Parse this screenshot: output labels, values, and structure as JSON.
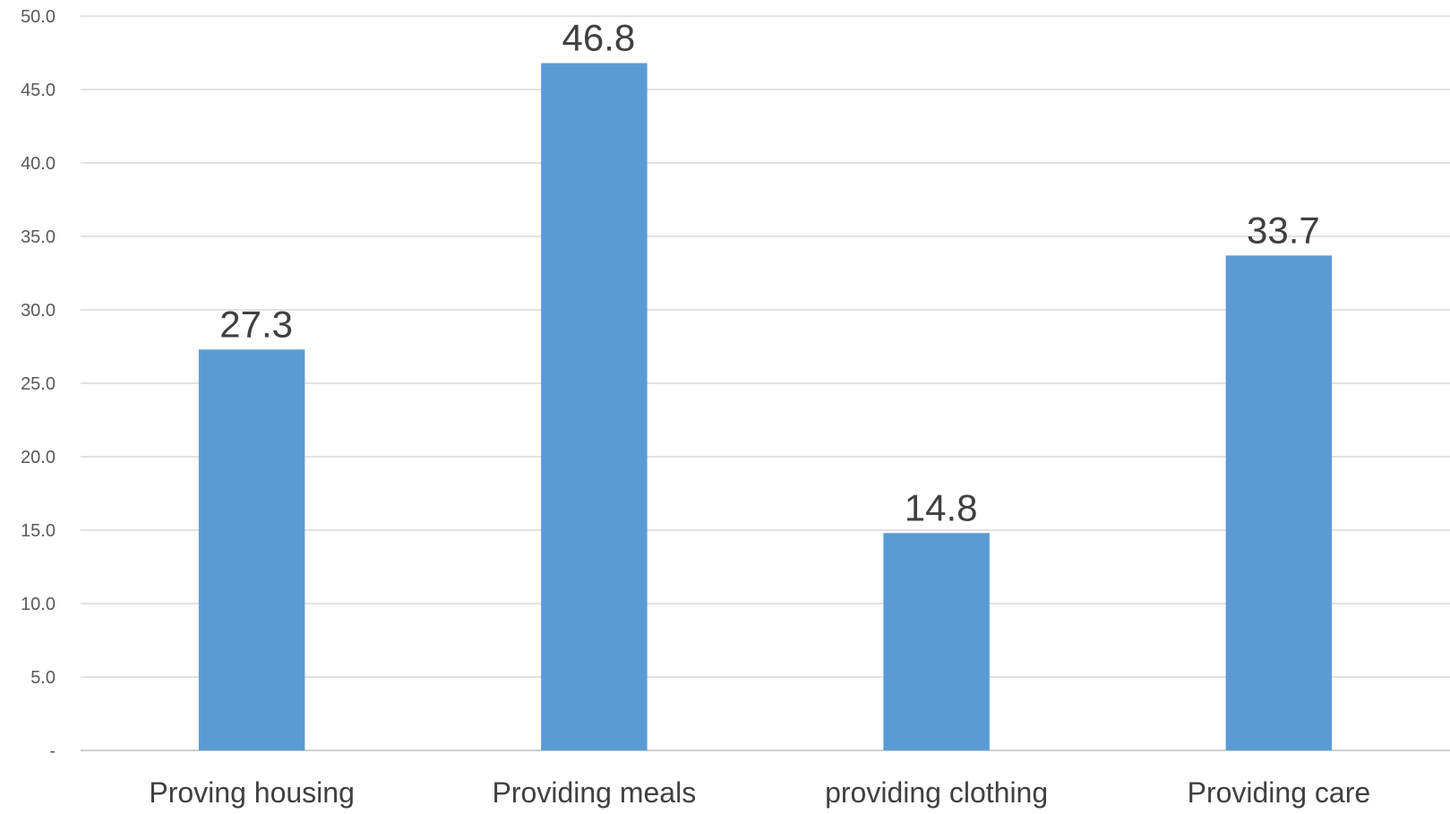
{
  "chart_data": {
    "type": "bar",
    "categories": [
      "Proving housing",
      "Providing meals",
      "providing clothing",
      "Providing care"
    ],
    "values": [
      27.3,
      46.8,
      14.8,
      33.7
    ],
    "data_labels": [
      "27.3",
      "46.8",
      "14.8",
      "33.7"
    ],
    "ylim": [
      0,
      50
    ],
    "yticks": [
      0,
      5,
      10,
      15,
      20,
      25,
      30,
      35,
      40,
      45,
      50
    ],
    "ytick_labels": [
      "-",
      "5.0",
      "10.0",
      "15.0",
      "20.0",
      "25.0",
      "30.0",
      "35.0",
      "40.0",
      "45.0",
      "50.0"
    ],
    "grid": true,
    "legend": "none",
    "bar_color": "#5b9bd5"
  }
}
